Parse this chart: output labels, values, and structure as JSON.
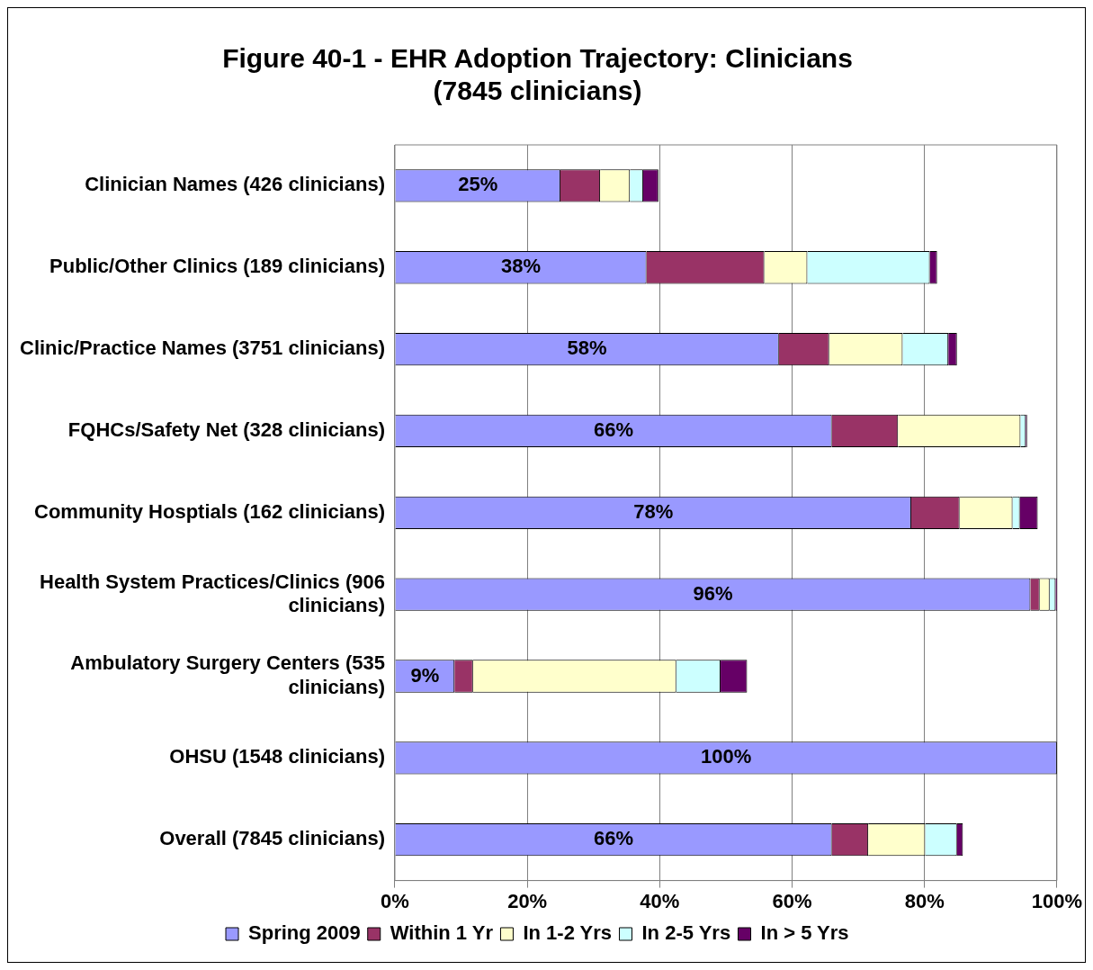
{
  "chart_data": {
    "type": "bar",
    "orientation": "horizontal",
    "stacked": true,
    "title": "Figure 40-1 - EHR Adoption Trajectory: Clinicians\n(7845 clinicians)",
    "categories": [
      "Clinician Names (426 clinicians)",
      "Public/Other Clinics (189 clinicians)",
      "Clinic/Practice Names (3751 clinicians)",
      "FQHCs/Safety Net (328 clinicians)",
      "Community Hosptials (162 clinicians)",
      "Health System Practices/Clinics (906 clinicians)",
      "Ambulatory Surgery Centers (535 clinicians)",
      "OHSU (1548 clinicians)",
      "Overall (7845 clinicians)"
    ],
    "series": [
      {
        "name": "Spring 2009",
        "color": "#9999ff",
        "values": [
          25,
          38,
          58,
          66,
          78,
          96,
          9,
          100,
          66
        ],
        "value_labels": [
          "25%",
          "38%",
          "58%",
          "66%",
          "78%",
          "96%",
          "9%",
          "100%",
          "66%"
        ]
      },
      {
        "name": "Within 1 Yr",
        "color": "#993366",
        "values": [
          6,
          17.8,
          7.6,
          10,
          7.3,
          1.4,
          2.8,
          0,
          5.5
        ]
      },
      {
        "name": "In 1-2 Yrs",
        "color": "#ffffcc",
        "values": [
          4.5,
          6.5,
          11.1,
          18.5,
          8,
          1.5,
          30.7,
          0,
          8.6
        ]
      },
      {
        "name": "In 2-5 Yrs",
        "color": "#ccffff",
        "values": [
          2,
          18.5,
          6.9,
          0.8,
          1.1,
          0.9,
          6.7,
          0,
          4.8
        ]
      },
      {
        "name": "In > 5 Yrs",
        "color": "#660066",
        "values": [
          2.3,
          1.1,
          1.3,
          0.2,
          2.7,
          0.3,
          4,
          0,
          0.9
        ]
      }
    ],
    "xlim": [
      0,
      100
    ],
    "xticks": [
      {
        "value": 0,
        "label": "0%"
      },
      {
        "value": 20,
        "label": "20%"
      },
      {
        "value": 40,
        "label": "40%"
      },
      {
        "value": 60,
        "label": "60%"
      },
      {
        "value": 80,
        "label": "80%"
      },
      {
        "value": 100,
        "label": "100%"
      }
    ],
    "grid": "x",
    "legend": "bottom"
  }
}
